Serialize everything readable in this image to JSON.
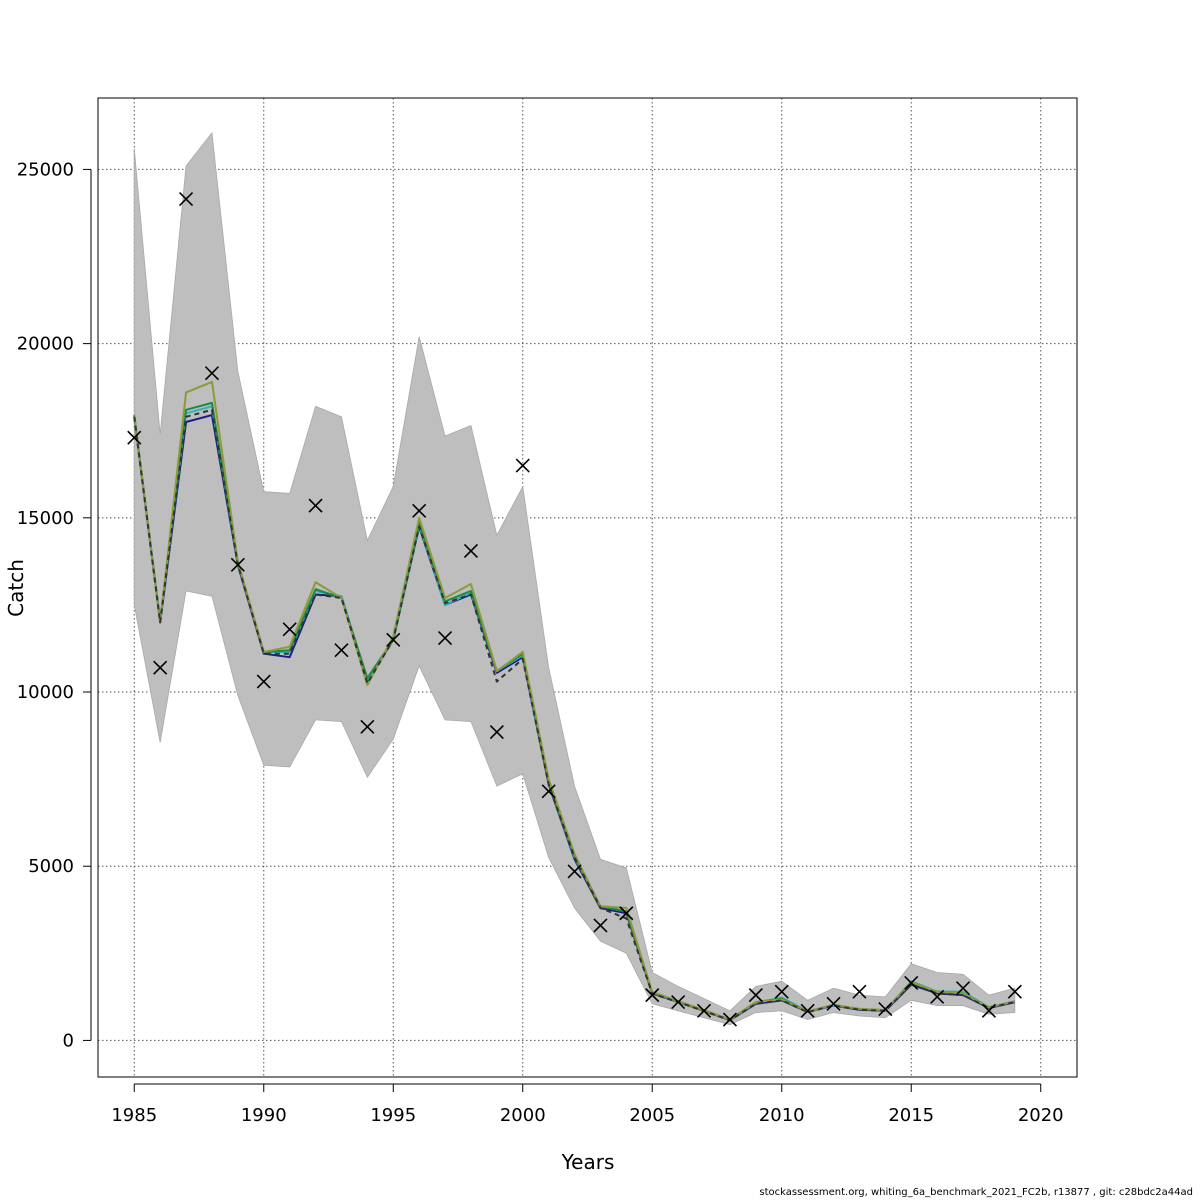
{
  "chart_data": {
    "type": "line",
    "xlabel": "Years",
    "ylabel": "Catch",
    "xlim": [
      1983.6,
      2021.4
    ],
    "ylim": [
      -1050,
      27050
    ],
    "x_ticks": [
      1985,
      1990,
      1995,
      2000,
      2005,
      2010,
      2015,
      2020
    ],
    "y_ticks": [
      0,
      5000,
      10000,
      15000,
      20000,
      25000
    ],
    "grid": true,
    "legend": "none",
    "years": [
      1985,
      1986,
      1987,
      1988,
      1989,
      1990,
      1991,
      1992,
      1993,
      1994,
      1995,
      1996,
      1997,
      1998,
      1999,
      2000,
      2001,
      2002,
      2003,
      2004,
      2005,
      2006,
      2007,
      2008,
      2009,
      2010,
      2011,
      2012,
      2013,
      2014,
      2015,
      2016,
      2017,
      2018,
      2019
    ],
    "band": {
      "upper": [
        25600,
        17400,
        25100,
        26050,
        19200,
        15750,
        15700,
        18200,
        17900,
        14350,
        15900,
        20200,
        17350,
        17650,
        14500,
        15900,
        10700,
        7300,
        5200,
        4950,
        1950,
        1550,
        1200,
        850,
        1550,
        1700,
        1150,
        1500,
        1300,
        1250,
        2200,
        1950,
        1900,
        1300,
        1500
      ],
      "lower": [
        12500,
        8550,
        12900,
        12750,
        9900,
        7900,
        7850,
        9200,
        9150,
        7550,
        8650,
        10750,
        9200,
        9150,
        7300,
        7650,
        5250,
        3800,
        2850,
        2500,
        1050,
        850,
        650,
        450,
        800,
        850,
        600,
        800,
        700,
        650,
        1150,
        1000,
        1000,
        750,
        800
      ]
    },
    "series": [
      {
        "color": "#1a1a8c",
        "values": [
          17900,
          12000,
          17750,
          17950,
          13650,
          11100,
          11000,
          12800,
          12750,
          10300,
          11500,
          14750,
          12500,
          12800,
          10550,
          11000,
          7350,
          5200,
          3800,
          3650,
          1350,
          1100,
          850,
          580,
          1050,
          1150,
          820,
          1000,
          880,
          850,
          1600,
          1350,
          1300,
          930,
          1100
        ]
      },
      {
        "color": "#2ab3c0",
        "values": [
          17900,
          12050,
          18000,
          18200,
          13700,
          11150,
          11150,
          12900,
          12750,
          10350,
          11500,
          14800,
          12500,
          12850,
          10600,
          11050,
          7400,
          5250,
          3850,
          3700,
          1370,
          1110,
          860,
          590,
          1080,
          1230,
          830,
          1010,
          900,
          860,
          1700,
          1400,
          1400,
          950,
          1120
        ]
      },
      {
        "color": "#1f8a3e",
        "values": [
          17950,
          12050,
          18100,
          18300,
          13700,
          11150,
          11200,
          12950,
          12700,
          10400,
          11500,
          14850,
          12600,
          12900,
          10600,
          11100,
          7400,
          5300,
          3850,
          3700,
          1380,
          1120,
          860,
          600,
          1100,
          1200,
          830,
          1020,
          900,
          870,
          1650,
          1400,
          1350,
          950,
          1120
        ]
      },
      {
        "color": "#8c9a3a",
        "values": [
          17950,
          12000,
          18600,
          18900,
          13750,
          11150,
          11300,
          13150,
          12700,
          10200,
          11600,
          15000,
          12700,
          13100,
          10600,
          11150,
          7500,
          5350,
          3850,
          3800,
          1390,
          1130,
          870,
          600,
          1100,
          1180,
          830,
          1020,
          910,
          870,
          1680,
          1390,
          1350,
          950,
          1120
        ]
      }
    ],
    "dashed_series": {
      "color": "#333333",
      "values": [
        17900,
        12000,
        17900,
        18100,
        13650,
        11100,
        11100,
        12800,
        12700,
        10250,
        11500,
        14750,
        12550,
        12800,
        10300,
        10950,
        7350,
        5250,
        3800,
        3500,
        1340,
        1100,
        840,
        580,
        1050,
        1150,
        810,
        1000,
        880,
        850,
        1600,
        1350,
        1300,
        930,
        1100
      ]
    },
    "observed": [
      17300,
      10700,
      24150,
      19150,
      13650,
      10300,
      11800,
      15350,
      11200,
      9000,
      11500,
      15200,
      11550,
      14050,
      8850,
      16500,
      7150,
      4850,
      3300,
      3650,
      1300,
      1100,
      850,
      600,
      1300,
      1400,
      850,
      1050,
      1400,
      900,
      1650,
      1250,
      1500,
      850,
      1400
    ]
  },
  "colors": {
    "band": "#bebebe",
    "band_edge": "#a8a8a8",
    "grid": "#555555",
    "axis": "#000000",
    "marker": "#000000"
  },
  "footer": "stockassessment.org, whiting_6a_benchmark_2021_FC2b, r13877 , git: c28bdc2a44ad"
}
